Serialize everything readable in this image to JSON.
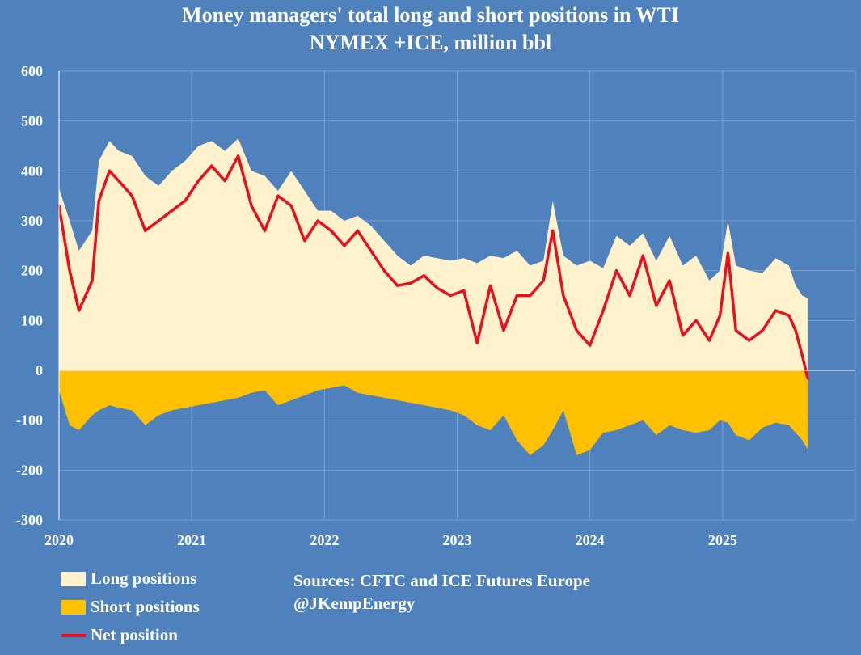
{
  "chart_data": {
    "type": "area",
    "title_line1": "Money managers' total long and short positions in WTI",
    "title_line2": "NYMEX +ICE, million bbl",
    "ylim": [
      -300,
      600
    ],
    "yticks": [
      600,
      500,
      400,
      300,
      200,
      100,
      0,
      -100,
      -200,
      -300
    ],
    "xlim": [
      2020.0,
      2026.0
    ],
    "xticks": [
      "2020",
      "2021",
      "2022",
      "2023",
      "2024",
      "2025"
    ],
    "colors": {
      "background": "#4f81bd",
      "long": "#fff2cc",
      "short": "#ffc000",
      "net": "#e8101c",
      "grid": "#7ea1d1"
    },
    "series": [
      {
        "name": "Long positions",
        "x": [
          2020.0,
          2020.08,
          2020.15,
          2020.25,
          2020.3,
          2020.38,
          2020.45,
          2020.55,
          2020.65,
          2020.75,
          2020.85,
          2020.95,
          2021.05,
          2021.15,
          2021.25,
          2021.35,
          2021.45,
          2021.55,
          2021.65,
          2021.75,
          2021.85,
          2021.95,
          2022.05,
          2022.15,
          2022.25,
          2022.35,
          2022.45,
          2022.55,
          2022.65,
          2022.75,
          2022.85,
          2022.95,
          2023.05,
          2023.15,
          2023.25,
          2023.35,
          2023.45,
          2023.55,
          2023.65,
          2023.72,
          2023.8,
          2023.9,
          2024.0,
          2024.1,
          2024.2,
          2024.3,
          2024.4,
          2024.5,
          2024.6,
          2024.7,
          2024.8,
          2024.9,
          2024.98,
          2025.04,
          2025.1,
          2025.2,
          2025.3,
          2025.4,
          2025.5,
          2025.55,
          2025.6,
          2025.64
        ],
        "values": [
          365,
          300,
          240,
          280,
          420,
          460,
          440,
          430,
          390,
          370,
          400,
          420,
          450,
          460,
          440,
          465,
          400,
          390,
          360,
          400,
          360,
          320,
          320,
          300,
          310,
          290,
          260,
          230,
          210,
          230,
          225,
          220,
          225,
          215,
          230,
          225,
          240,
          210,
          220,
          340,
          230,
          210,
          220,
          205,
          270,
          250,
          275,
          220,
          270,
          210,
          230,
          180,
          200,
          300,
          210,
          200,
          195,
          225,
          210,
          170,
          150,
          145
        ]
      },
      {
        "name": "Short positions",
        "values": [
          -40,
          -110,
          -120,
          -90,
          -80,
          -70,
          -75,
          -80,
          -110,
          -90,
          -80,
          -75,
          -70,
          -65,
          -60,
          -55,
          -45,
          -40,
          -70,
          -60,
          -50,
          -40,
          -35,
          -30,
          -45,
          -50,
          -55,
          -60,
          -65,
          -70,
          -75,
          -80,
          -90,
          -110,
          -120,
          -90,
          -140,
          -170,
          -150,
          -120,
          -80,
          -170,
          -160,
          -125,
          -120,
          -110,
          -100,
          -130,
          -110,
          -120,
          -125,
          -120,
          -100,
          -105,
          -130,
          -140,
          -115,
          -105,
          -110,
          -125,
          -140,
          -158
        ]
      },
      {
        "name": "Net position",
        "values": [
          330,
          200,
          120,
          180,
          340,
          400,
          380,
          350,
          280,
          300,
          320,
          340,
          380,
          410,
          380,
          430,
          330,
          280,
          350,
          330,
          260,
          300,
          280,
          250,
          280,
          240,
          200,
          170,
          175,
          190,
          165,
          150,
          160,
          55,
          170,
          80,
          150,
          150,
          180,
          280,
          150,
          80,
          50,
          120,
          200,
          150,
          230,
          130,
          180,
          70,
          100,
          60,
          110,
          235,
          80,
          60,
          80,
          120,
          110,
          80,
          30,
          -15
        ]
      }
    ]
  },
  "legend": {
    "long": "Long positions",
    "short": "Short positions",
    "net": "Net position"
  },
  "sources": {
    "line1": "Sources: CFTC and ICE Futures Europe",
    "line2": "@JKempEnergy"
  }
}
